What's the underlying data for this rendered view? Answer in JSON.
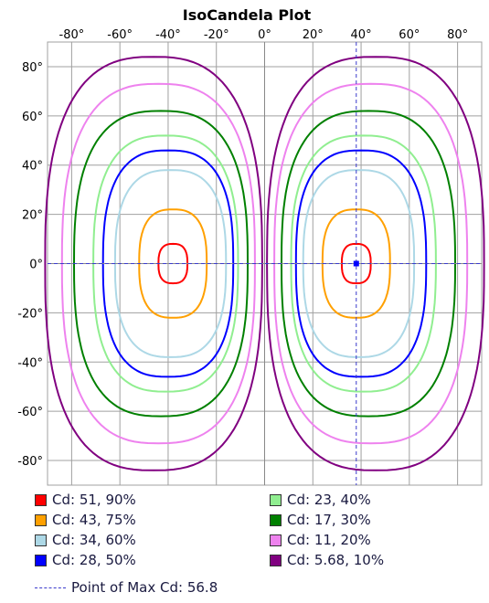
{
  "chart_data": {
    "type": "contour",
    "title": "IsoCandela Plot",
    "xlim": [
      -90,
      90
    ],
    "ylim": [
      -90,
      90
    ],
    "x_ticks": [
      -80,
      -60,
      -40,
      -20,
      0,
      20,
      40,
      60,
      80
    ],
    "y_ticks": [
      80,
      60,
      40,
      20,
      0,
      -20,
      -40,
      -60,
      -80
    ],
    "tick_suffix": "°",
    "grid": true,
    "max_point": {
      "x": 38,
      "y": 0
    },
    "max_label": "Point of Max Cd: 56.8",
    "series": [
      {
        "name": "Cd: 51, 90%",
        "color": "#ff0000",
        "hx": 6,
        "hy": 8,
        "cx": 38
      },
      {
        "name": "Cd: 43, 75%",
        "color": "#ffa000",
        "hx": 14,
        "hy": 22,
        "cx": 38
      },
      {
        "name": "Cd: 34, 60%",
        "color": "#add8e6",
        "hx": 23,
        "hy": 38,
        "cx": 39
      },
      {
        "name": "Cd: 28, 50%",
        "color": "#0000ff",
        "hx": 27,
        "hy": 46,
        "cx": 40
      },
      {
        "name": "Cd: 23, 40%",
        "color": "#90ee90",
        "hx": 30,
        "hy": 52,
        "cx": 41
      },
      {
        "name": "Cd: 17, 30%",
        "color": "#008000",
        "hx": 36,
        "hy": 62,
        "cx": 43
      },
      {
        "name": "Cd: 11, 20%",
        "color": "#ee82ee",
        "hx": 40,
        "hy": 73,
        "cx": 44
      },
      {
        "name": "Cd: 5.68, 10%",
        "color": "#800080",
        "hx": 45,
        "hy": 84,
        "cx": 46
      }
    ]
  }
}
